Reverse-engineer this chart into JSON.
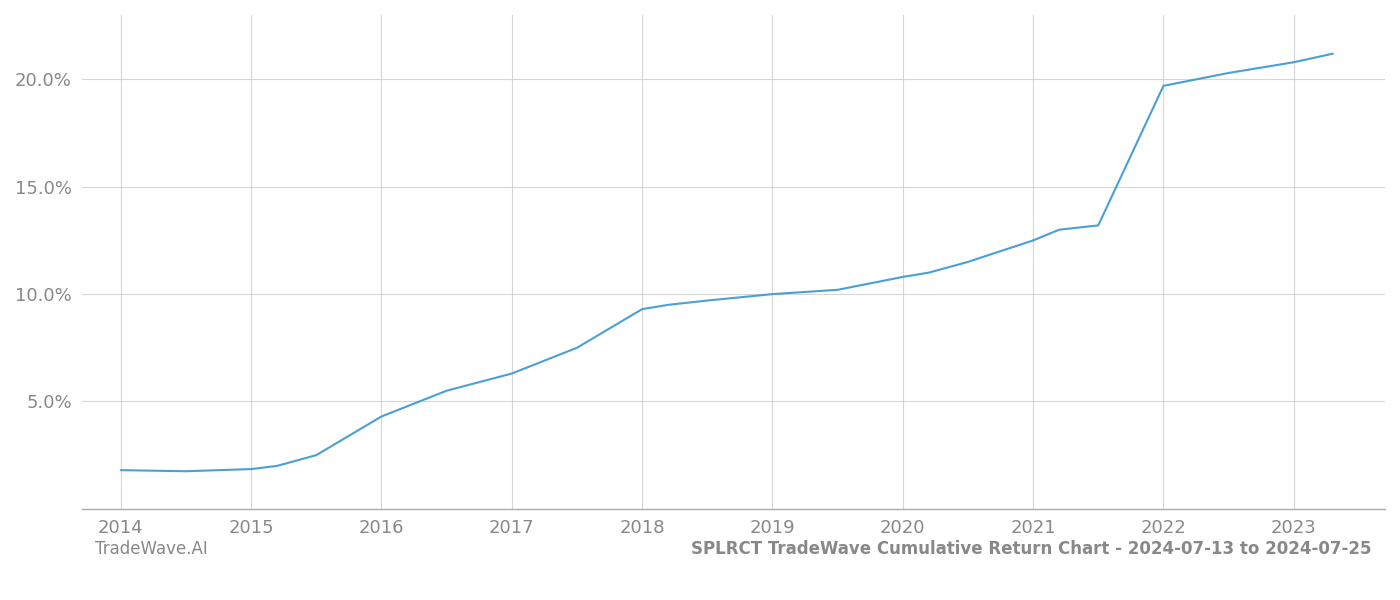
{
  "title": "SPLRCT TradeWave Cumulative Return Chart - 2024-07-13 to 2024-07-25",
  "watermark": "TradeWave.AI",
  "line_color": "#4a9fd4",
  "background_color": "#ffffff",
  "grid_color": "#cccccc",
  "tick_label_color": "#888888",
  "title_color": "#888888",
  "watermark_color": "#888888",
  "x_years": [
    2014,
    2014.5,
    2015,
    2015.2,
    2015.5,
    2016.0,
    2016.5,
    2017.0,
    2017.5,
    2018.0,
    2018.2,
    2018.5,
    2019.0,
    2019.5,
    2020.0,
    2020.2,
    2020.5,
    2021.0,
    2021.2,
    2021.5,
    2022.0,
    2022.5,
    2023.0,
    2023.3
  ],
  "y_values": [
    1.8,
    1.75,
    1.85,
    2.0,
    2.5,
    4.3,
    5.5,
    6.3,
    7.5,
    9.3,
    9.5,
    9.7,
    10.0,
    10.2,
    10.8,
    11.0,
    11.5,
    12.5,
    13.0,
    13.2,
    19.7,
    20.3,
    20.8,
    21.2
  ],
  "xlim": [
    2013.7,
    2023.7
  ],
  "ylim": [
    0,
    23
  ],
  "yticks": [
    5.0,
    10.0,
    15.0,
    20.0
  ],
  "ytick_labels": [
    "5.0%",
    "10.0%",
    "15.0%",
    "20.0%"
  ],
  "xticks": [
    2014,
    2015,
    2016,
    2017,
    2018,
    2019,
    2020,
    2021,
    2022,
    2023
  ],
  "line_width": 1.5,
  "figsize": [
    14.0,
    6.0
  ],
  "dpi": 100
}
